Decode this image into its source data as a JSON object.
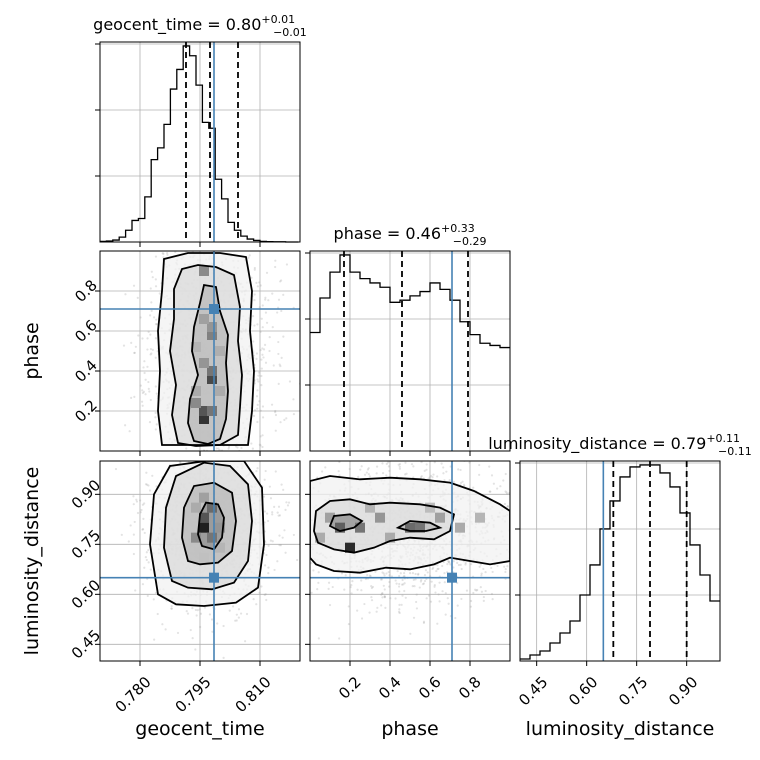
{
  "chart_data": {
    "type": "corner",
    "parameters": [
      {
        "name": "geocent_time",
        "axis_label": "geocent_time",
        "title_main": "geocent_time = 0.80",
        "title_sup": "+0.01",
        "title_sub": "−0.01",
        "range": [
          0.77,
          0.82
        ],
        "ticks": [
          0.78,
          0.795,
          0.81
        ],
        "tick_labels": [
          "0.780",
          "0.795",
          "0.810"
        ],
        "truth": 0.7985,
        "quantiles": [
          0.7915,
          0.7975,
          0.8045
        ],
        "hist_edges_start": 0.77,
        "hist_bin_width": 0.0016,
        "hist_counts": [
          0.3,
          0.5,
          1.0,
          2.5,
          6.0,
          11.0,
          12.0,
          23.0,
          42.0,
          48.0,
          60.0,
          78.0,
          88.0,
          100.0,
          95.0,
          80.0,
          61.0,
          58.0,
          32.0,
          22.0,
          10.0,
          6.0,
          3.0,
          1.5,
          0.8,
          0.3,
          0.2,
          0.1,
          0.1,
          0.0,
          0.0
        ]
      },
      {
        "name": "phase",
        "axis_label": "phase",
        "title_main": "phase = 0.46",
        "title_sup": "+0.33",
        "title_sub": "−0.29",
        "range": [
          0.0,
          1.0
        ],
        "ticks": [
          0.2,
          0.4,
          0.6,
          0.8
        ],
        "tick_labels": [
          "0.2",
          "0.4",
          "0.6",
          "0.8"
        ],
        "truth": 0.71,
        "quantiles": [
          0.17,
          0.46,
          0.79
        ],
        "hist_edges_start": 0.0,
        "hist_bin_width": 0.05,
        "hist_counts": [
          55.0,
          71.0,
          83.0,
          91.0,
          83.0,
          80.0,
          78.0,
          76.0,
          69.0,
          70.0,
          72.0,
          74.0,
          78.0,
          75.0,
          70.0,
          60.0,
          54.0,
          50.0,
          49.0,
          48.0
        ]
      },
      {
        "name": "luminosity_distance",
        "axis_label": "luminosity_distance",
        "title_main": "luminosity_distance = 0.79",
        "title_sup": "+0.11",
        "title_sub": "−0.11",
        "range": [
          0.4,
          1.0
        ],
        "ticks": [
          0.45,
          0.6,
          0.75,
          0.9
        ],
        "tick_labels": [
          "0.45",
          "0.60",
          "0.75",
          "0.90"
        ],
        "truth": 0.65,
        "quantiles": [
          0.68,
          0.79,
          0.9
        ],
        "hist_edges_start": 0.4,
        "hist_bin_width": 0.03,
        "hist_counts": [
          1.0,
          3.0,
          5.0,
          9.0,
          14.0,
          20.0,
          33.0,
          48.0,
          66.0,
          80.0,
          92.0,
          97.0,
          98.0,
          98.0,
          94.0,
          87.0,
          74.0,
          58.0,
          43.0,
          30.0
        ]
      }
    ],
    "pairs": [
      {
        "x_param": 0,
        "y_param": 1,
        "contours": [
          [
            [
              0.7935,
              0.05
            ],
            [
              0.792,
              0.14
            ],
            [
              0.7925,
              0.26
            ],
            [
              0.7945,
              0.38
            ],
            [
              0.793,
              0.5
            ],
            [
              0.7935,
              0.62
            ],
            [
              0.795,
              0.74
            ],
            [
              0.796,
              0.83
            ],
            [
              0.799,
              0.82
            ],
            [
              0.8,
              0.7
            ],
            [
              0.802,
              0.58
            ],
            [
              0.8015,
              0.44
            ],
            [
              0.802,
              0.3
            ],
            [
              0.8015,
              0.16
            ],
            [
              0.8,
              0.06
            ],
            [
              0.797,
              0.035
            ]
          ],
          [
            [
              0.7895,
              0.04
            ],
            [
              0.788,
              0.18
            ],
            [
              0.789,
              0.33
            ],
            [
              0.7875,
              0.5
            ],
            [
              0.7885,
              0.66
            ],
            [
              0.7885,
              0.81
            ],
            [
              0.7905,
              0.91
            ],
            [
              0.7945,
              0.93
            ],
            [
              0.799,
              0.92
            ],
            [
              0.8035,
              0.88
            ],
            [
              0.805,
              0.72
            ],
            [
              0.8045,
              0.55
            ],
            [
              0.8055,
              0.38
            ],
            [
              0.805,
              0.22
            ],
            [
              0.8045,
              0.08
            ],
            [
              0.8,
              0.03
            ],
            [
              0.794,
              0.025
            ]
          ],
          [
            [
              0.7855,
              0.03
            ],
            [
              0.7845,
              0.2
            ],
            [
              0.785,
              0.4
            ],
            [
              0.7845,
              0.6
            ],
            [
              0.7855,
              0.8
            ],
            [
              0.786,
              0.96
            ],
            [
              0.792,
              0.99
            ],
            [
              0.8,
              0.99
            ],
            [
              0.8065,
              0.97
            ],
            [
              0.808,
              0.8
            ],
            [
              0.8075,
              0.6
            ],
            [
              0.8085,
              0.4
            ],
            [
              0.808,
              0.2
            ],
            [
              0.807,
              0.03
            ]
          ]
        ],
        "density_cells": [
          [
            0.796,
            0.16,
            0.85
          ],
          [
            0.796,
            0.2,
            0.7
          ],
          [
            0.798,
            0.2,
            0.55
          ],
          [
            0.794,
            0.24,
            0.45
          ],
          [
            0.798,
            0.36,
            0.75
          ],
          [
            0.798,
            0.4,
            0.55
          ],
          [
            0.796,
            0.44,
            0.4
          ],
          [
            0.798,
            0.58,
            0.5
          ],
          [
            0.798,
            0.62,
            0.4
          ],
          [
            0.796,
            0.66,
            0.35
          ],
          [
            0.796,
            0.9,
            0.45
          ],
          [
            0.794,
            0.3,
            0.3
          ],
          [
            0.8,
            0.3,
            0.3
          ],
          [
            0.8,
            0.5,
            0.28
          ],
          [
            0.794,
            0.52,
            0.25
          ]
        ],
        "scatter_seed": 11,
        "scatter_center": [
          0.7975,
          0.5
        ],
        "scatter_spread": [
          0.0075,
          0.32
        ]
      },
      {
        "x_param": 0,
        "y_param": 2,
        "contours": [
          [
            [
              0.7955,
              0.745
            ],
            [
              0.7945,
              0.78
            ],
            [
              0.795,
              0.84
            ],
            [
              0.7965,
              0.875
            ],
            [
              0.7995,
              0.87
            ],
            [
              0.801,
              0.83
            ],
            [
              0.8005,
              0.77
            ],
            [
              0.7985,
              0.735
            ]
          ],
          [
            [
              0.792,
              0.7
            ],
            [
              0.7905,
              0.77
            ],
            [
              0.791,
              0.86
            ],
            [
              0.7935,
              0.925
            ],
            [
              0.7985,
              0.935
            ],
            [
              0.803,
              0.905
            ],
            [
              0.804,
              0.82
            ],
            [
              0.803,
              0.73
            ],
            [
              0.7995,
              0.695
            ],
            [
              0.795,
              0.69
            ]
          ],
          [
            [
              0.788,
              0.64
            ],
            [
              0.786,
              0.74
            ],
            [
              0.7865,
              0.86
            ],
            [
              0.789,
              0.955
            ],
            [
              0.796,
              0.995
            ],
            [
              0.8025,
              0.985
            ],
            [
              0.807,
              0.93
            ],
            [
              0.808,
              0.82
            ],
            [
              0.807,
              0.7
            ],
            [
              0.8035,
              0.635
            ],
            [
              0.798,
              0.615
            ],
            [
              0.792,
              0.62
            ]
          ],
          [
            [
              0.7845,
              0.6
            ],
            [
              0.7825,
              0.75
            ],
            [
              0.7835,
              0.9
            ],
            [
              0.7875,
              0.985
            ],
            [
              0.7965,
              1.0
            ],
            [
              0.806,
              1.0
            ],
            [
              0.8105,
              0.92
            ],
            [
              0.811,
              0.75
            ],
            [
              0.8095,
              0.62
            ],
            [
              0.804,
              0.575
            ],
            [
              0.796,
              0.565
            ],
            [
              0.789,
              0.57
            ]
          ]
        ],
        "density_cells": [
          [
            0.796,
            0.8,
            0.95
          ],
          [
            0.796,
            0.83,
            0.7
          ],
          [
            0.798,
            0.86,
            0.6
          ],
          [
            0.798,
            0.77,
            0.55
          ],
          [
            0.794,
            0.77,
            0.45
          ],
          [
            0.8,
            0.8,
            0.4
          ],
          [
            0.796,
            0.89,
            0.35
          ],
          [
            0.794,
            0.86,
            0.3
          ],
          [
            0.8,
            0.74,
            0.25
          ],
          [
            0.796,
            0.71,
            0.2
          ]
        ],
        "scatter_seed": 23,
        "scatter_center": [
          0.7975,
          0.79
        ],
        "scatter_spread": [
          0.0075,
          0.12
        ]
      },
      {
        "x_param": 1,
        "y_param": 2,
        "contours": [
          [
            [
              0.1,
              0.805
            ],
            [
              0.12,
              0.835
            ],
            [
              0.2,
              0.84
            ],
            [
              0.26,
              0.82
            ],
            [
              0.22,
              0.8
            ],
            [
              0.15,
              0.79
            ]
          ],
          [
            [
              0.44,
              0.8
            ],
            [
              0.5,
              0.82
            ],
            [
              0.6,
              0.815
            ],
            [
              0.65,
              0.8
            ],
            [
              0.58,
              0.79
            ],
            [
              0.5,
              0.79
            ]
          ],
          [
            [
              0.02,
              0.79
            ],
            [
              0.03,
              0.85
            ],
            [
              0.1,
              0.88
            ],
            [
              0.2,
              0.885
            ],
            [
              0.3,
              0.87
            ],
            [
              0.4,
              0.875
            ],
            [
              0.55,
              0.87
            ],
            [
              0.65,
              0.86
            ],
            [
              0.72,
              0.84
            ],
            [
              0.7,
              0.79
            ],
            [
              0.62,
              0.765
            ],
            [
              0.5,
              0.77
            ],
            [
              0.4,
              0.76
            ],
            [
              0.32,
              0.74
            ],
            [
              0.22,
              0.725
            ],
            [
              0.12,
              0.735
            ],
            [
              0.04,
              0.755
            ]
          ],
          [
            [
              0.0,
              0.71
            ],
            [
              0.0,
              0.94
            ],
            [
              0.1,
              0.955
            ],
            [
              0.25,
              0.945
            ],
            [
              0.4,
              0.95
            ],
            [
              0.55,
              0.945
            ],
            [
              0.7,
              0.935
            ],
            [
              0.82,
              0.91
            ],
            [
              0.95,
              0.87
            ],
            [
              1.0,
              0.85
            ],
            [
              1.0,
              0.7
            ],
            [
              0.9,
              0.69
            ],
            [
              0.8,
              0.7
            ],
            [
              0.7,
              0.71
            ],
            [
              0.62,
              0.69
            ],
            [
              0.5,
              0.675
            ],
            [
              0.38,
              0.68
            ],
            [
              0.25,
              0.665
            ],
            [
              0.12,
              0.67
            ],
            [
              0.03,
              0.69
            ]
          ]
        ],
        "density_cells": [
          [
            0.2,
            0.74,
            0.9
          ],
          [
            0.15,
            0.8,
            0.65
          ],
          [
            0.25,
            0.8,
            0.55
          ],
          [
            0.5,
            0.8,
            0.6
          ],
          [
            0.55,
            0.8,
            0.55
          ],
          [
            0.35,
            0.83,
            0.4
          ],
          [
            0.1,
            0.83,
            0.35
          ],
          [
            0.65,
            0.83,
            0.35
          ],
          [
            0.75,
            0.8,
            0.3
          ],
          [
            0.05,
            0.77,
            0.3
          ],
          [
            0.4,
            0.77,
            0.3
          ],
          [
            0.85,
            0.83,
            0.25
          ],
          [
            0.3,
            0.86,
            0.25
          ],
          [
            0.6,
            0.86,
            0.22
          ]
        ],
        "scatter_seed": 37,
        "scatter_center": [
          0.5,
          0.79
        ],
        "scatter_spread": [
          0.32,
          0.11
        ]
      }
    ]
  }
}
